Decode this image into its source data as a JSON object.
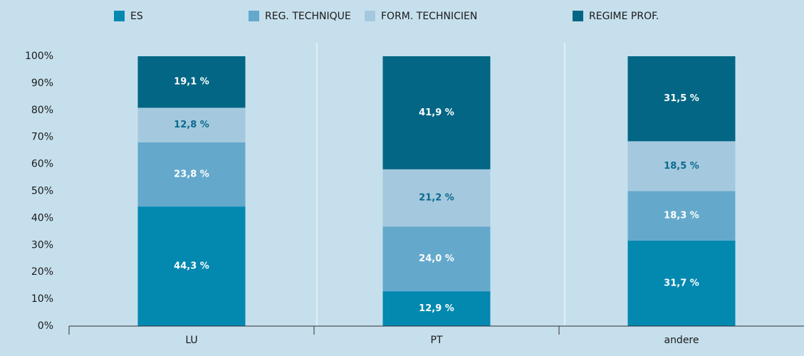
{
  "chart_data": {
    "type": "stacked_bar",
    "categories": [
      "LU",
      "PT",
      "andere"
    ],
    "series": [
      {
        "name": "ES",
        "color": "#0388b0",
        "label_color": "#ffffff",
        "values": [
          44.3,
          12.9,
          31.7
        ],
        "value_labels": [
          "44,3 %",
          "12,9 %",
          "31,7 %"
        ]
      },
      {
        "name": "REG. TECHNIQUE",
        "color": "#64a9cc",
        "label_color": "#ffffff",
        "values": [
          23.8,
          24.0,
          18.3
        ],
        "value_labels": [
          "23,8 %",
          "24,0 %",
          "18,3 %"
        ]
      },
      {
        "name": "FORM. TECHNICIEN",
        "color": "#a4c9df",
        "label_color": "#0b6a8c",
        "values": [
          12.8,
          21.2,
          18.5
        ],
        "value_labels": [
          "12,8 %",
          "21,2 %",
          "18,5 %"
        ]
      },
      {
        "name": "REGIME PROF.",
        "color": "#036684",
        "label_color": "#ffffff",
        "values": [
          19.1,
          41.9,
          31.5
        ],
        "value_labels": [
          "19,1 %",
          "41,9 %",
          "31,5 %"
        ]
      }
    ],
    "ylim": [
      0,
      100
    ],
    "yticks": [
      {
        "value": 0,
        "label": "0%"
      },
      {
        "value": 10,
        "label": "10%"
      },
      {
        "value": 20,
        "label": "20%"
      },
      {
        "value": 30,
        "label": "30%"
      },
      {
        "value": 40,
        "label": "40%"
      },
      {
        "value": 50,
        "label": "50%"
      },
      {
        "value": 60,
        "label": "60%"
      },
      {
        "value": 70,
        "label": "70%"
      },
      {
        "value": 80,
        "label": "80%"
      },
      {
        "value": 90,
        "label": "90%"
      },
      {
        "value": 100,
        "label": "100%"
      }
    ]
  }
}
